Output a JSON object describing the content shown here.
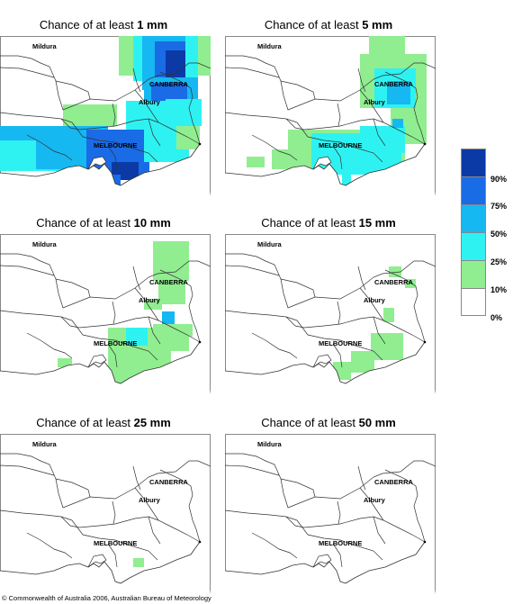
{
  "title_prefix": "Chance of at least ",
  "panels": [
    {
      "amount": "1 mm"
    },
    {
      "amount": "5 mm"
    },
    {
      "amount": "10 mm"
    },
    {
      "amount": "15 mm"
    },
    {
      "amount": "25 mm"
    },
    {
      "amount": "50 mm"
    }
  ],
  "cities": {
    "mildura": "Mildura",
    "canberra": "CANBERRA",
    "albury": "Albury",
    "melbourne": "MELBOURNE"
  },
  "legend": {
    "labels": [
      "90%",
      "75%",
      "50%",
      "25%",
      "10%",
      "0%"
    ],
    "colors": [
      "#0b3aa6",
      "#1a6be6",
      "#15b8f0",
      "#2ef2f2",
      "#90ee90",
      "#ffffff"
    ]
  },
  "copyright": "© Commonwealth of Australia 2006, Australian Bureau of Meteorology"
}
